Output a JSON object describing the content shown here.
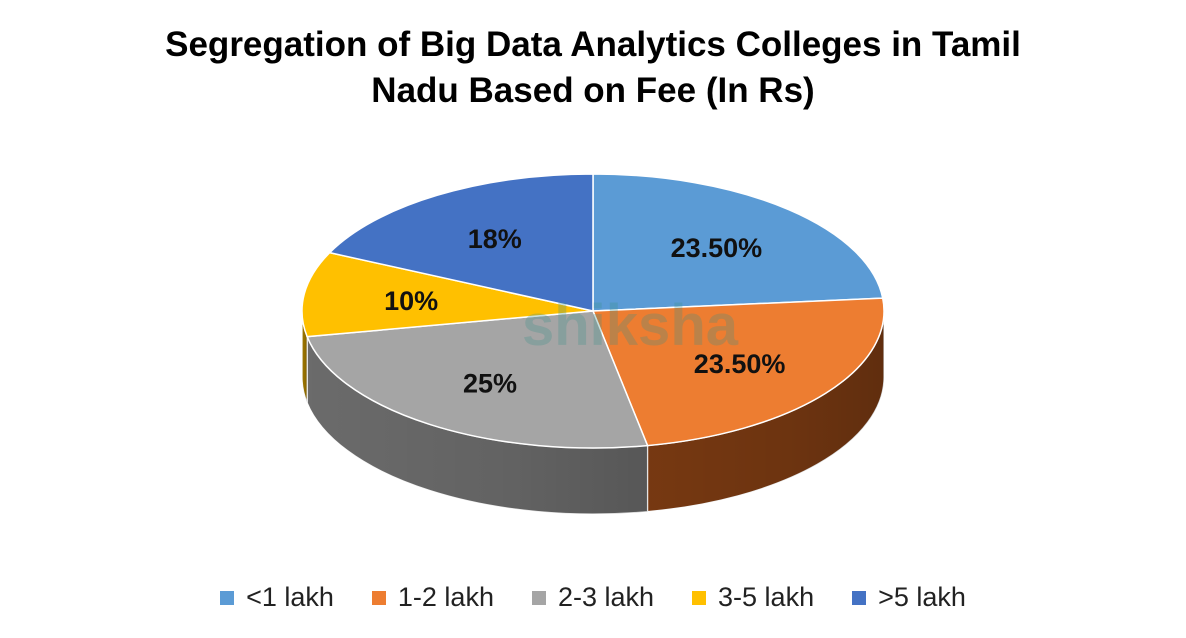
{
  "chart_data": {
    "type": "pie",
    "title_lines": [
      "Segregation of Big Data Analytics Colleges in Tamil",
      "Nadu Based on Fee (In Rs)"
    ],
    "watermark": "shiksha",
    "slices": [
      {
        "label": "<1 lakh",
        "value": 23.5,
        "display": "23.50%",
        "color": "#5B9BD5",
        "side_color": "#2E6DA4"
      },
      {
        "label": "1-2 lakh",
        "value": 23.5,
        "display": "23.50%",
        "color": "#ED7D31",
        "side_color": "#7A3A12"
      },
      {
        "label": "2-3 lakh",
        "value": 25,
        "display": "25%",
        "color": "#A5A5A5",
        "side_color": "#6E6E6E"
      },
      {
        "label": "3-5 lakh",
        "value": 10,
        "display": "10%",
        "color": "#FFC000",
        "side_color": "#A37A00"
      },
      {
        "label": ">5 lakh",
        "value": 18,
        "display": "18%",
        "color": "#4472C4",
        "side_color": "#2A4A85"
      }
    ],
    "legend_position": "bottom"
  }
}
